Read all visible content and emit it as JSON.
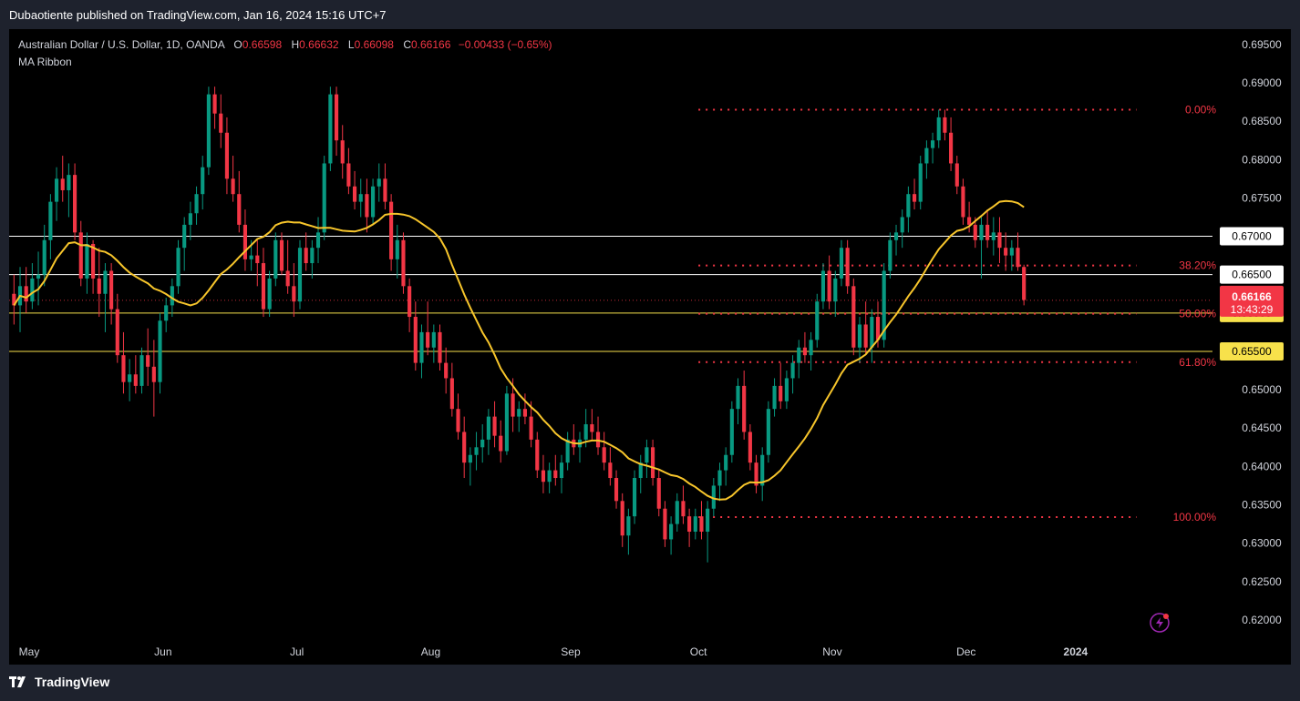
{
  "header": {
    "published_by": "Dubaotiente published on TradingView.com, Jan 16, 2024 15:16 UTC+7"
  },
  "legend": {
    "symbol": "Australian Dollar / U.S. Dollar, 1D, OANDA",
    "o_label": "O",
    "o_value": "0.66598",
    "h_label": "H",
    "h_value": "0.66632",
    "l_label": "L",
    "l_value": "0.66098",
    "c_label": "C",
    "c_value": "0.66166",
    "change": "−0.00433 (−0.65%)",
    "indicator": "MA Ribbon"
  },
  "footer": {
    "brand": "TradingView"
  },
  "colors": {
    "up": "#089981",
    "down": "#f23645",
    "ma": "#f7c52b",
    "fib": "#f23645",
    "hline_white": "#ffffff",
    "hline_yellow": "#f7e14b"
  },
  "chart_data": {
    "type": "candlestick",
    "symbol": "AUDUSD",
    "timeframe": "1D",
    "ylim": [
      0.6175,
      0.697
    ],
    "y_ticks": [
      "0.69500",
      "0.69000",
      "0.68500",
      "0.68000",
      "0.67500",
      "0.67000",
      "0.66500",
      "0.66000",
      "0.65500",
      "0.65000",
      "0.64500",
      "0.64000",
      "0.63500",
      "0.63000",
      "0.62500",
      "0.62000"
    ],
    "x_ticks": [
      "May",
      "Jun",
      "Jul",
      "Aug",
      "Sep",
      "Oct",
      "Nov",
      "Dec",
      "2024"
    ],
    "x_tick_days": [
      0,
      22,
      44,
      66,
      89,
      110,
      132,
      154,
      172
    ],
    "total_days": 190,
    "last_price": "0.66166",
    "countdown": "13:43:29",
    "horizontal_lines": [
      {
        "price": 0.67,
        "label": "0.67000",
        "style": "white"
      },
      {
        "price": 0.665,
        "label": "0.66500",
        "style": "white"
      },
      {
        "price": 0.66,
        "label": "0.66000",
        "style": "yellow"
      },
      {
        "price": 0.655,
        "label": "0.65500",
        "style": "yellow"
      }
    ],
    "fibonacci": {
      "start_day": 113,
      "end_day": 185,
      "levels": [
        {
          "label": "0.00%",
          "price": 0.6865
        },
        {
          "label": "38.20%",
          "price": 0.6662
        },
        {
          "label": "50.00%",
          "price": 0.6599
        },
        {
          "label": "61.80%",
          "price": 0.6536
        },
        {
          "label": "100.00%",
          "price": 0.6334
        }
      ]
    },
    "candles": [
      [
        0.6625,
        0.665,
        0.6585,
        0.661
      ],
      [
        0.661,
        0.666,
        0.6575,
        0.6635
      ],
      [
        0.6635,
        0.666,
        0.66,
        0.6615
      ],
      [
        0.6615,
        0.6665,
        0.6605,
        0.6645
      ],
      [
        0.6645,
        0.668,
        0.661,
        0.665
      ],
      [
        0.665,
        0.6715,
        0.6635,
        0.6695
      ],
      [
        0.6695,
        0.6755,
        0.667,
        0.6745
      ],
      [
        0.6745,
        0.679,
        0.672,
        0.6775
      ],
      [
        0.6775,
        0.6805,
        0.6745,
        0.676
      ],
      [
        0.676,
        0.6795,
        0.6725,
        0.678
      ],
      [
        0.678,
        0.6795,
        0.6695,
        0.6705
      ],
      [
        0.6705,
        0.672,
        0.6635,
        0.6645
      ],
      [
        0.6645,
        0.6705,
        0.6625,
        0.669
      ],
      [
        0.669,
        0.6695,
        0.6625,
        0.6645
      ],
      [
        0.6645,
        0.6685,
        0.6595,
        0.6625
      ],
      [
        0.6625,
        0.6665,
        0.6575,
        0.6655
      ],
      [
        0.6655,
        0.6665,
        0.6585,
        0.6605
      ],
      [
        0.6605,
        0.6625,
        0.6535,
        0.6545
      ],
      [
        0.6545,
        0.6575,
        0.6495,
        0.651
      ],
      [
        0.651,
        0.654,
        0.6485,
        0.652
      ],
      [
        0.652,
        0.6545,
        0.6495,
        0.6505
      ],
      [
        0.6505,
        0.6555,
        0.6495,
        0.6545
      ],
      [
        0.6545,
        0.658,
        0.6505,
        0.653
      ],
      [
        0.653,
        0.6565,
        0.6465,
        0.651
      ],
      [
        0.651,
        0.66,
        0.6495,
        0.659
      ],
      [
        0.659,
        0.662,
        0.6575,
        0.661
      ],
      [
        0.661,
        0.6645,
        0.6595,
        0.6635
      ],
      [
        0.6635,
        0.6695,
        0.6625,
        0.6685
      ],
      [
        0.6685,
        0.6725,
        0.6655,
        0.6715
      ],
      [
        0.6715,
        0.6745,
        0.6695,
        0.673
      ],
      [
        0.673,
        0.6765,
        0.6715,
        0.6755
      ],
      [
        0.6755,
        0.6805,
        0.6735,
        0.679
      ],
      [
        0.679,
        0.6895,
        0.678,
        0.6885
      ],
      [
        0.6885,
        0.6895,
        0.684,
        0.686
      ],
      [
        0.686,
        0.6885,
        0.6815,
        0.6835
      ],
      [
        0.6835,
        0.6855,
        0.6755,
        0.6775
      ],
      [
        0.6775,
        0.6805,
        0.6745,
        0.6755
      ],
      [
        0.6755,
        0.6785,
        0.6705,
        0.6715
      ],
      [
        0.6715,
        0.6735,
        0.6655,
        0.667
      ],
      [
        0.667,
        0.6695,
        0.6655,
        0.6675
      ],
      [
        0.6675,
        0.6695,
        0.6635,
        0.6665
      ],
      [
        0.6665,
        0.6685,
        0.6595,
        0.6605
      ],
      [
        0.6605,
        0.6655,
        0.6595,
        0.6645
      ],
      [
        0.6645,
        0.6705,
        0.6635,
        0.6695
      ],
      [
        0.6695,
        0.6705,
        0.665,
        0.6655
      ],
      [
        0.6655,
        0.6695,
        0.6625,
        0.6635
      ],
      [
        0.6635,
        0.6665,
        0.6595,
        0.6615
      ],
      [
        0.6615,
        0.6695,
        0.6605,
        0.6685
      ],
      [
        0.6685,
        0.6705,
        0.6655,
        0.6665
      ],
      [
        0.6665,
        0.6695,
        0.6645,
        0.6685
      ],
      [
        0.6685,
        0.6725,
        0.6665,
        0.6705
      ],
      [
        0.6705,
        0.6805,
        0.6695,
        0.6795
      ],
      [
        0.6795,
        0.6895,
        0.6785,
        0.6885
      ],
      [
        0.6885,
        0.6895,
        0.6805,
        0.6825
      ],
      [
        0.6825,
        0.6845,
        0.6775,
        0.6795
      ],
      [
        0.6795,
        0.6815,
        0.6755,
        0.6765
      ],
      [
        0.6765,
        0.6785,
        0.6735,
        0.6745
      ],
      [
        0.6745,
        0.6775,
        0.6725,
        0.6755
      ],
      [
        0.6755,
        0.6775,
        0.6705,
        0.6725
      ],
      [
        0.6725,
        0.6775,
        0.6715,
        0.6765
      ],
      [
        0.6765,
        0.6795,
        0.6745,
        0.6775
      ],
      [
        0.6775,
        0.6795,
        0.6735,
        0.6745
      ],
      [
        0.6745,
        0.6755,
        0.6655,
        0.667
      ],
      [
        0.667,
        0.6715,
        0.6645,
        0.6695
      ],
      [
        0.6695,
        0.6705,
        0.6625,
        0.6635
      ],
      [
        0.6635,
        0.6645,
        0.6575,
        0.6595
      ],
      [
        0.6595,
        0.6615,
        0.6525,
        0.6535
      ],
      [
        0.6535,
        0.6585,
        0.6515,
        0.6575
      ],
      [
        0.6575,
        0.6615,
        0.6545,
        0.6555
      ],
      [
        0.6555,
        0.6585,
        0.6535,
        0.6575
      ],
      [
        0.6575,
        0.6585,
        0.6525,
        0.6535
      ],
      [
        0.6535,
        0.6555,
        0.6495,
        0.6515
      ],
      [
        0.6515,
        0.6535,
        0.6465,
        0.6475
      ],
      [
        0.6475,
        0.6495,
        0.6435,
        0.6445
      ],
      [
        0.6445,
        0.6465,
        0.6385,
        0.6405
      ],
      [
        0.6405,
        0.6425,
        0.6375,
        0.6415
      ],
      [
        0.6415,
        0.6445,
        0.6395,
        0.6425
      ],
      [
        0.6425,
        0.6455,
        0.6405,
        0.6435
      ],
      [
        0.6435,
        0.6475,
        0.6415,
        0.6465
      ],
      [
        0.6465,
        0.6485,
        0.6425,
        0.644
      ],
      [
        0.644,
        0.646,
        0.6405,
        0.642
      ],
      [
        0.642,
        0.6505,
        0.6415,
        0.6495
      ],
      [
        0.6495,
        0.6515,
        0.6445,
        0.6465
      ],
      [
        0.6465,
        0.6485,
        0.6445,
        0.6475
      ],
      [
        0.6475,
        0.6495,
        0.6455,
        0.6465
      ],
      [
        0.6465,
        0.6485,
        0.6425,
        0.6435
      ],
      [
        0.6435,
        0.6445,
        0.6385,
        0.6395
      ],
      [
        0.6395,
        0.6415,
        0.6365,
        0.638
      ],
      [
        0.638,
        0.6405,
        0.6365,
        0.6395
      ],
      [
        0.6395,
        0.6415,
        0.6375,
        0.6385
      ],
      [
        0.6385,
        0.6415,
        0.6365,
        0.6405
      ],
      [
        0.6405,
        0.6445,
        0.6395,
        0.6435
      ],
      [
        0.6435,
        0.6455,
        0.6415,
        0.6425
      ],
      [
        0.6425,
        0.6445,
        0.6405,
        0.6435
      ],
      [
        0.6435,
        0.6475,
        0.6425,
        0.6455
      ],
      [
        0.6455,
        0.6475,
        0.6435,
        0.6445
      ],
      [
        0.6445,
        0.6465,
        0.6415,
        0.6425
      ],
      [
        0.6425,
        0.6445,
        0.6395,
        0.6405
      ],
      [
        0.6405,
        0.6425,
        0.6375,
        0.6385
      ],
      [
        0.6385,
        0.6395,
        0.6345,
        0.6355
      ],
      [
        0.6355,
        0.6365,
        0.6295,
        0.631
      ],
      [
        0.631,
        0.6345,
        0.6285,
        0.6335
      ],
      [
        0.6335,
        0.6395,
        0.6325,
        0.6385
      ],
      [
        0.6385,
        0.6415,
        0.6365,
        0.6405
      ],
      [
        0.6405,
        0.6435,
        0.6385,
        0.6425
      ],
      [
        0.6425,
        0.6435,
        0.6375,
        0.6385
      ],
      [
        0.6385,
        0.6395,
        0.6335,
        0.6345
      ],
      [
        0.6345,
        0.6355,
        0.6295,
        0.6305
      ],
      [
        0.6305,
        0.6335,
        0.6285,
        0.6325
      ],
      [
        0.6325,
        0.6365,
        0.6315,
        0.6355
      ],
      [
        0.6355,
        0.6375,
        0.6325,
        0.6335
      ],
      [
        0.6335,
        0.6345,
        0.6295,
        0.6315
      ],
      [
        0.6315,
        0.6345,
        0.6305,
        0.6335
      ],
      [
        0.6335,
        0.6355,
        0.6305,
        0.6315
      ],
      [
        0.6315,
        0.6355,
        0.6275,
        0.6345
      ],
      [
        0.6345,
        0.6385,
        0.6335,
        0.6375
      ],
      [
        0.6375,
        0.6405,
        0.6355,
        0.6395
      ],
      [
        0.6395,
        0.6425,
        0.6375,
        0.6415
      ],
      [
        0.6415,
        0.6485,
        0.6405,
        0.6475
      ],
      [
        0.6475,
        0.6515,
        0.6455,
        0.6505
      ],
      [
        0.6505,
        0.6525,
        0.6435,
        0.6445
      ],
      [
        0.6445,
        0.6455,
        0.6395,
        0.6405
      ],
      [
        0.6405,
        0.6415,
        0.6365,
        0.6375
      ],
      [
        0.6375,
        0.6425,
        0.6355,
        0.6415
      ],
      [
        0.6415,
        0.6485,
        0.6405,
        0.6475
      ],
      [
        0.6475,
        0.6515,
        0.6465,
        0.6505
      ],
      [
        0.6505,
        0.6535,
        0.6475,
        0.6485
      ],
      [
        0.6485,
        0.6525,
        0.6475,
        0.6515
      ],
      [
        0.6515,
        0.6545,
        0.6495,
        0.6535
      ],
      [
        0.6535,
        0.6565,
        0.6515,
        0.6555
      ],
      [
        0.6555,
        0.6575,
        0.6535,
        0.6545
      ],
      [
        0.6545,
        0.6575,
        0.6525,
        0.6565
      ],
      [
        0.6565,
        0.6625,
        0.6555,
        0.6615
      ],
      [
        0.6615,
        0.6665,
        0.6605,
        0.6655
      ],
      [
        0.6655,
        0.6675,
        0.6605,
        0.6615
      ],
      [
        0.6615,
        0.6655,
        0.6595,
        0.6645
      ],
      [
        0.6645,
        0.6695,
        0.6635,
        0.6685
      ],
      [
        0.6685,
        0.6695,
        0.6625,
        0.6635
      ],
      [
        0.6635,
        0.6645,
        0.6545,
        0.6555
      ],
      [
        0.6555,
        0.6595,
        0.6535,
        0.6585
      ],
      [
        0.6585,
        0.6615,
        0.6545,
        0.6555
      ],
      [
        0.6555,
        0.6605,
        0.6535,
        0.6595
      ],
      [
        0.6595,
        0.6615,
        0.6555,
        0.6565
      ],
      [
        0.6565,
        0.6665,
        0.6555,
        0.6655
      ],
      [
        0.6655,
        0.6705,
        0.6645,
        0.6695
      ],
      [
        0.6695,
        0.6715,
        0.6675,
        0.6705
      ],
      [
        0.6705,
        0.6735,
        0.6685,
        0.6725
      ],
      [
        0.6725,
        0.6765,
        0.6705,
        0.6755
      ],
      [
        0.6755,
        0.6775,
        0.6735,
        0.6745
      ],
      [
        0.6745,
        0.6805,
        0.6735,
        0.6795
      ],
      [
        0.6795,
        0.6825,
        0.6775,
        0.6815
      ],
      [
        0.6815,
        0.6835,
        0.6795,
        0.6825
      ],
      [
        0.6825,
        0.6865,
        0.6815,
        0.6855
      ],
      [
        0.6855,
        0.6865,
        0.6825,
        0.6835
      ],
      [
        0.6835,
        0.6855,
        0.6785,
        0.6795
      ],
      [
        0.6795,
        0.6805,
        0.6755,
        0.6765
      ],
      [
        0.6765,
        0.6775,
        0.6715,
        0.6725
      ],
      [
        0.6725,
        0.6745,
        0.6705,
        0.6715
      ],
      [
        0.6715,
        0.6725,
        0.6685,
        0.6695
      ],
      [
        0.6695,
        0.6725,
        0.6645,
        0.6715
      ],
      [
        0.6715,
        0.6735,
        0.6685,
        0.6695
      ],
      [
        0.6695,
        0.6725,
        0.6675,
        0.6705
      ],
      [
        0.6705,
        0.6725,
        0.6665,
        0.6685
      ],
      [
        0.6685,
        0.6705,
        0.6655,
        0.6675
      ],
      [
        0.6675,
        0.6695,
        0.6655,
        0.6685
      ],
      [
        0.6685,
        0.6705,
        0.6655,
        0.666
      ],
      [
        0.666,
        0.6663,
        0.661,
        0.6617
      ]
    ],
    "ma_period": 20
  }
}
